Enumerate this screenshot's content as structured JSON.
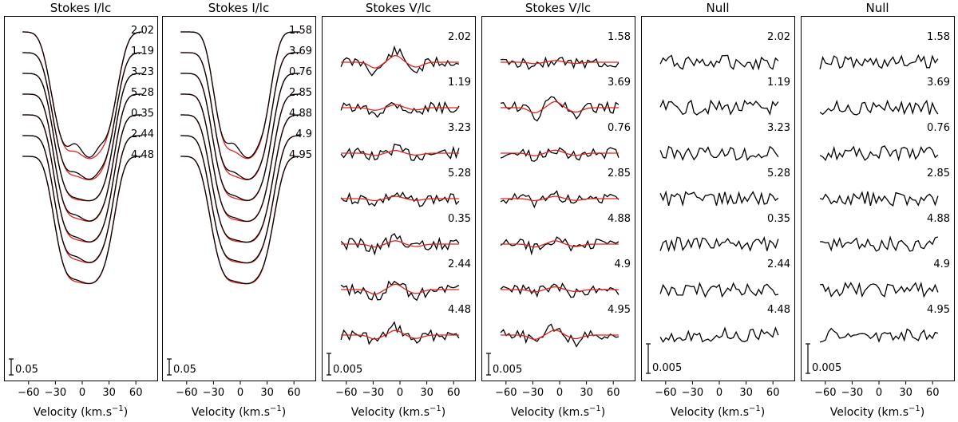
{
  "chart_data": [
    {
      "type": "line",
      "kind": "stokesI",
      "title": "Stokes I/lc",
      "xlabel": "Velocity (km.s",
      "xlabel_sup": "−1",
      "xlabel_end": ")",
      "xlim": [
        -75,
        75
      ],
      "xticks": [
        -60,
        -30,
        0,
        30,
        60
      ],
      "scale_label": "0.05",
      "series": [
        {
          "label": "2.02",
          "asym": 0.06,
          "bump": 0.12
        },
        {
          "label": "1.19",
          "asym": 0.03,
          "bump": 0.06
        },
        {
          "label": "3.23",
          "asym": 0.0,
          "bump": 0.02
        },
        {
          "label": "5.28",
          "asym": -0.01,
          "bump": 0.05
        },
        {
          "label": "0.35",
          "asym": -0.02,
          "bump": 0.04
        },
        {
          "label": "2.44",
          "asym": -0.02,
          "bump": 0.05
        },
        {
          "label": "4.48",
          "asym": -0.01,
          "bump": 0.03
        }
      ],
      "observed_color": "#000000",
      "model_color": "#e8201a"
    },
    {
      "type": "line",
      "kind": "stokesI",
      "title": "Stokes I/lc",
      "xlabel": "Velocity (km.s",
      "xlabel_sup": "−1",
      "xlabel_end": ")",
      "xlim": [
        -75,
        75
      ],
      "xticks": [
        -60,
        -30,
        0,
        30,
        60
      ],
      "scale_label": "0.05",
      "series": [
        {
          "label": "1.58",
          "asym": -0.07,
          "bump": 0.12
        },
        {
          "label": "3.69",
          "asym": -0.04,
          "bump": 0.06
        },
        {
          "label": "0.76",
          "asym": -0.02,
          "bump": 0.04
        },
        {
          "label": "2.85",
          "asym": 0.0,
          "bump": 0.03
        },
        {
          "label": "4.88",
          "asym": 0.02,
          "bump": 0.02
        },
        {
          "label": "4.9",
          "asym": 0.03,
          "bump": 0.02
        },
        {
          "label": "4.95",
          "asym": 0.04,
          "bump": 0.02
        }
      ],
      "observed_color": "#000000",
      "model_color": "#e8201a"
    },
    {
      "type": "line",
      "kind": "stokesV",
      "title": "Stokes V/lc",
      "xlabel": "Velocity (km.s",
      "xlabel_sup": "−1",
      "xlabel_end": ")",
      "xlim": [
        -75,
        75
      ],
      "xticks": [
        -60,
        -30,
        0,
        30,
        60
      ],
      "scale_label": "0.005",
      "series": [
        {
          "label": "2.02",
          "amp": 1.0,
          "seed": 11
        },
        {
          "label": "1.19",
          "amp": 0.45,
          "seed": 12
        },
        {
          "label": "3.23",
          "amp": 0.4,
          "seed": 13
        },
        {
          "label": "5.28",
          "amp": 0.35,
          "seed": 14
        },
        {
          "label": "0.35",
          "amp": 0.5,
          "seed": 15
        },
        {
          "label": "2.44",
          "amp": 0.8,
          "seed": 16
        },
        {
          "label": "4.48",
          "amp": 0.7,
          "seed": 17
        }
      ],
      "observed_color": "#000000",
      "model_color": "#e8201a"
    },
    {
      "type": "line",
      "kind": "stokesV",
      "title": "Stokes V/lc",
      "xlabel": "Velocity (km.s",
      "xlabel_sup": "−1",
      "xlabel_end": ")",
      "xlim": [
        -75,
        75
      ],
      "xticks": [
        -60,
        -30,
        0,
        30,
        60
      ],
      "scale_label": "0.005",
      "series": [
        {
          "label": "1.58",
          "amp": 0.25,
          "seed": 21
        },
        {
          "label": "3.69",
          "amp": 0.9,
          "seed": 22
        },
        {
          "label": "0.76",
          "amp": 0.45,
          "seed": 23
        },
        {
          "label": "2.85",
          "amp": 0.35,
          "seed": 24
        },
        {
          "label": "4.88",
          "amp": 0.5,
          "seed": 25
        },
        {
          "label": "4.9",
          "amp": 0.4,
          "seed": 26
        },
        {
          "label": "4.95",
          "amp": 0.75,
          "seed": 27
        }
      ],
      "observed_color": "#000000",
      "model_color": "#e8201a"
    },
    {
      "type": "line",
      "kind": "null",
      "title": "Null",
      "xlabel": "Velocity (km.s",
      "xlabel_sup": "−1",
      "xlabel_end": ")",
      "xlim": [
        -75,
        75
      ],
      "xticks": [
        -60,
        -30,
        0,
        30,
        60
      ],
      "scale_label": "0.005",
      "series": [
        {
          "label": "2.02",
          "seed": 31
        },
        {
          "label": "1.19",
          "seed": 32
        },
        {
          "label": "3.23",
          "seed": 33
        },
        {
          "label": "5.28",
          "seed": 34
        },
        {
          "label": "0.35",
          "seed": 35
        },
        {
          "label": "2.44",
          "seed": 36
        },
        {
          "label": "4.48",
          "seed": 37
        }
      ],
      "observed_color": "#000000"
    },
    {
      "type": "line",
      "kind": "null",
      "title": "Null",
      "xlabel": "Velocity (km.s",
      "xlabel_sup": "−1",
      "xlabel_end": ")",
      "xlim": [
        -75,
        75
      ],
      "xticks": [
        -60,
        -30,
        0,
        30,
        60
      ],
      "scale_label": "0.005",
      "series": [
        {
          "label": "1.58",
          "seed": 41
        },
        {
          "label": "3.69",
          "seed": 42
        },
        {
          "label": "0.76",
          "seed": 43
        },
        {
          "label": "2.85",
          "seed": 44
        },
        {
          "label": "4.88",
          "seed": 45
        },
        {
          "label": "4.9",
          "seed": 46
        },
        {
          "label": "4.95",
          "seed": 47
        }
      ],
      "observed_color": "#000000"
    }
  ]
}
